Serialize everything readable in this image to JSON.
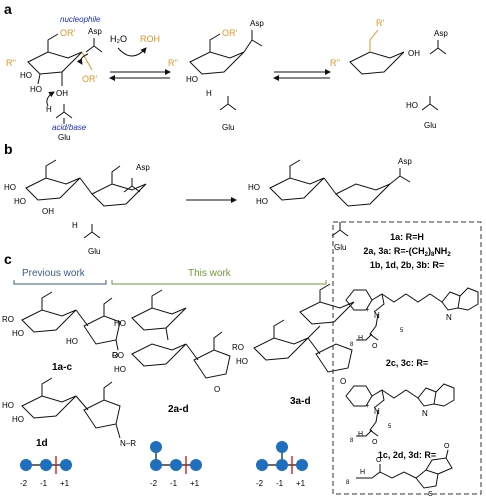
{
  "panels": {
    "a": {
      "letter": "a",
      "nucleophile": "nucleophile",
      "acid_base": "acid/base",
      "asp": "Asp",
      "glu": "Glu",
      "r_prime": "R'",
      "r_double_prime": "R''",
      "or_prime": "OR'",
      "water": "H₂O",
      "roh": "ROH",
      "ho": "HO",
      "oh": "OH",
      "h": "H"
    },
    "b": {
      "letter": "b",
      "asp": "Asp",
      "glu": "Glu",
      "ho": "HO",
      "oh": "OH",
      "h": "H"
    },
    "c": {
      "letter": "c",
      "previous_work": "Previous work",
      "this_work": "This work",
      "compound_1ac": "1a-c",
      "compound_1d": "1d",
      "compound_2ad": "2a-d",
      "compound_3ad": "3a-d",
      "ro": "RO",
      "ho": "HO",
      "oh": "OH",
      "n_r": "N–R",
      "subsite_labels": [
        "-2",
        "-1",
        "+1"
      ]
    }
  },
  "legend": {
    "r_h": "1a: R=H",
    "r_amine_prefix": "2a, 3a: R=-(CH",
    "r_amine_sub": "2",
    "r_amine_mid": ")",
    "r_amine_sub2": "8",
    "r_amine_suffix": "NH",
    "r_amine_sub3": "2",
    "r_cy5": "1b, 1d, 2b, 3b: R=",
    "r_cy3": "2c, 3c: R=",
    "r_biotin": "1c, 2d, 3d: R=",
    "n_plus": "N",
    "n": "N",
    "plus": "+",
    "h": "H",
    "o": "O",
    "s": "S",
    "sub_8": "8",
    "sub_5": "5"
  },
  "colors": {
    "nucleophile": "#1c2fb5",
    "orange": "#e0952a",
    "previous_bracket": "#3a5c8a",
    "this_bracket": "#6f9a3a",
    "sugar_node": "#1f6fbf",
    "cleavage": "#d21f1f"
  }
}
